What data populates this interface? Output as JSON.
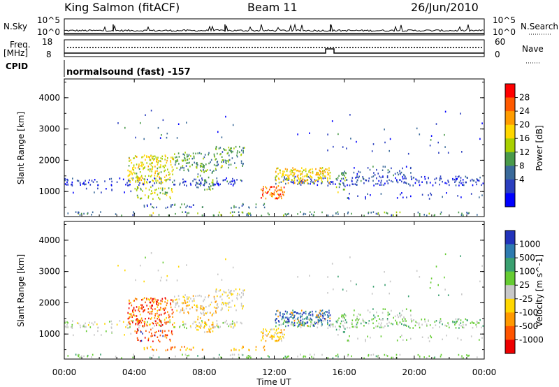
{
  "header": {
    "station": "King Salmon (fitACF)",
    "beam": "Beam 11",
    "date": "26/Jun/2010",
    "cpid_label": "CPID",
    "cpid_value": "normalsound (fast) -157"
  },
  "chart_data": [
    {
      "type": "line",
      "panel": "noise",
      "left_label": "N.Sky",
      "right_label": "N.Search",
      "yticks_left": [
        "10^5",
        "10^0"
      ],
      "yticks_right": [
        "10^5",
        "10^0"
      ]
    },
    {
      "type": "line",
      "panel": "frequency",
      "left_label_line1": "Freq.",
      "left_label_line2": "[MHz]",
      "right_label": "Nave",
      "yticks_left": [
        "18",
        "8"
      ],
      "yticks_right": [
        "60",
        "0"
      ],
      "ylim_left": [
        8,
        18
      ],
      "ylim_right": [
        0,
        60
      ]
    },
    {
      "type": "heatmap",
      "panel": "power",
      "ylabel": "Slant Range [km]",
      "yticks": [
        "4000",
        "3000",
        "2000",
        "1000"
      ],
      "ylim": [
        200,
        4600
      ],
      "colorbar_label": "Power [dB]",
      "colorbar_ticks": [
        "28",
        "24",
        "20",
        "16",
        "12",
        "8",
        "4"
      ],
      "colorbar_colors": [
        "#ff0000",
        "#ff5a00",
        "#ff9c00",
        "#ffd700",
        "#a9d000",
        "#4a9a4a",
        "#3a6a9a",
        "#2b3fbf",
        "#0000ff"
      ]
    },
    {
      "type": "heatmap",
      "panel": "velocity",
      "ylabel": "Slant Range [km]",
      "yticks": [
        "4000",
        "3000",
        "2000",
        "1000"
      ],
      "ylim": [
        200,
        4600
      ],
      "colorbar_label": "Velocity [m s^-1]",
      "colorbar_ticks": [
        "1000",
        "500",
        "100",
        "25",
        "-25",
        "-100",
        "-500",
        "-1000"
      ],
      "colorbar_colors": [
        "#2233bb",
        "#2e7bb0",
        "#3aa070",
        "#66cc33",
        "#c8c8c8",
        "#ffd700",
        "#ff9900",
        "#ff5500",
        "#ee0000"
      ]
    }
  ],
  "time_axis": {
    "xticks": [
      "00:00",
      "04:00",
      "08:00",
      "12:00",
      "16:00",
      "20:00",
      "00:00"
    ],
    "xlabel": "Time UT"
  }
}
